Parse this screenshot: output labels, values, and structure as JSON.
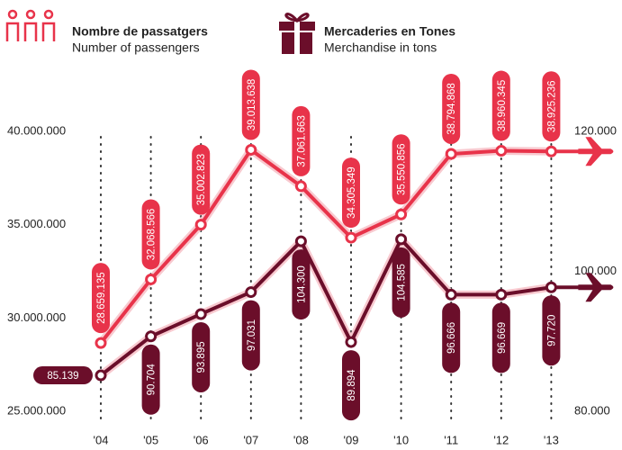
{
  "chart_data": {
    "type": "line",
    "categories": [
      "'04",
      "'05",
      "'06",
      "'07",
      "'08",
      "'09",
      "'10",
      "'11",
      "'12",
      "'13"
    ],
    "series": [
      {
        "name": "Nombre de passatgers",
        "label_en": "Number of passengers",
        "color": "#e8334a",
        "values": [
          28659135,
          32068566,
          35002823,
          39013638,
          37061663,
          34305349,
          35550856,
          38794868,
          38960345,
          38925236
        ],
        "value_labels": [
          "28.659.135",
          "32.068.566",
          "35.002.823",
          "39.013.638",
          "37.061.663",
          "34.305.349",
          "35.550.856",
          "38.794.868",
          "38.960.345",
          "38.925.236"
        ]
      },
      {
        "name": "Mercaderies en Tones",
        "label_en": "Merchandise in tons",
        "color": "#6b0e2a",
        "axis": "y2",
        "values": [
          85139,
          90704,
          93895,
          97031,
          104300,
          89894,
          104585,
          96666,
          96669,
          97720
        ],
        "value_labels": [
          "85.139",
          "90.704",
          "93.895",
          "97.031",
          "104.300",
          "89.894",
          "104.585",
          "96.666",
          "96.669",
          "97.720"
        ]
      }
    ],
    "ylim": [
      25000000,
      40000000
    ],
    "yticks": [
      {
        "value": 25000000,
        "label": "25.000.000"
      },
      {
        "value": 30000000,
        "label": "30.000.000"
      },
      {
        "value": 35000000,
        "label": "35.000.000"
      },
      {
        "value": 40000000,
        "label": "40.000.000"
      }
    ],
    "y2lim": [
      80000,
      120000
    ],
    "y2ticks": [
      {
        "value": 80000,
        "label": "80.000"
      },
      {
        "value": 100000,
        "label": "100.000"
      },
      {
        "value": 120000,
        "label": "120.000"
      }
    ]
  }
}
